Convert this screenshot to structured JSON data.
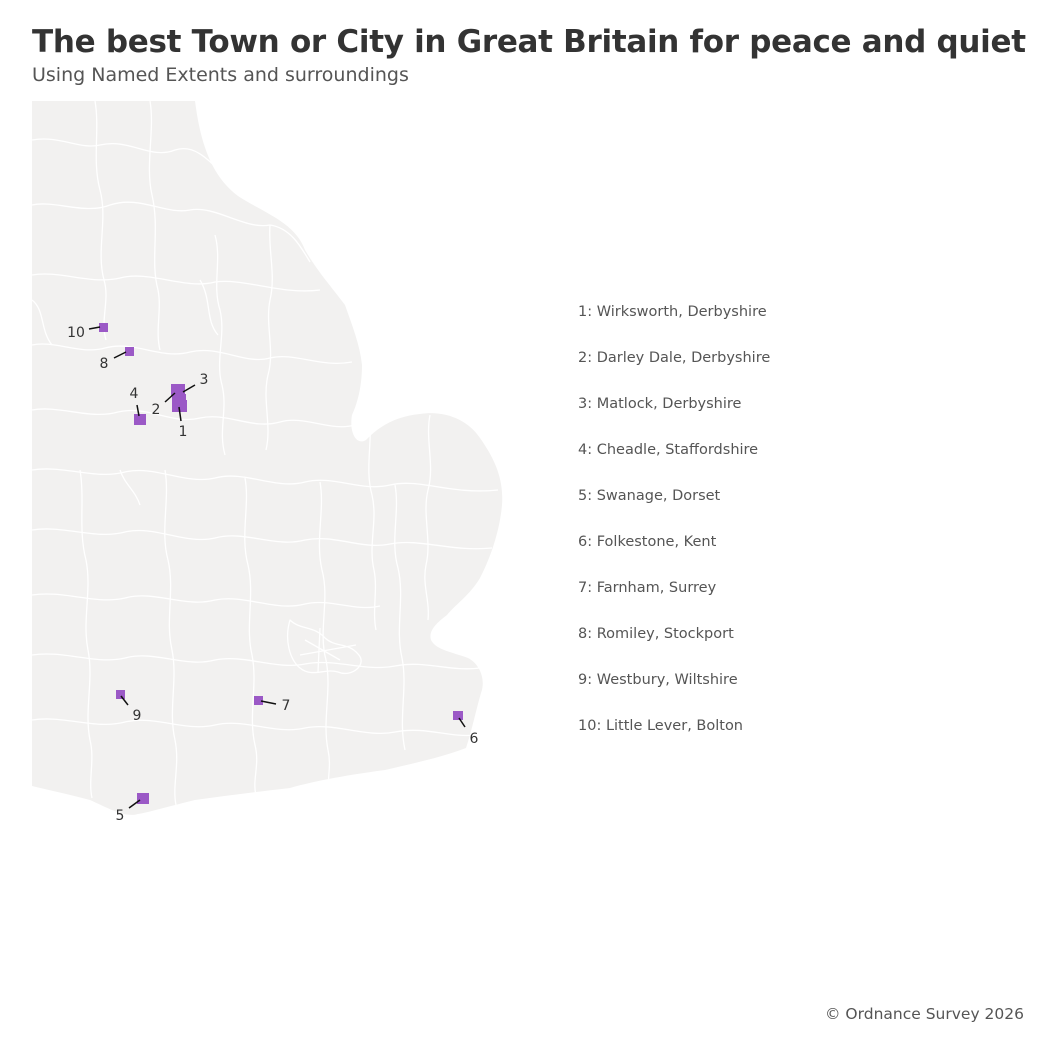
{
  "title": "The best Town or City in Great Britain for peace and quiet",
  "subtitle": "Using Named Extents and surroundings",
  "credit": "© Ordnance Survey 2026",
  "colors": {
    "land": "#f2f1f0",
    "boundaries": "#ffffff",
    "marker": "#9b59c6",
    "leader_line": "#111111"
  },
  "map": {
    "region_shown": "England (Midlands, East and South)",
    "markers": [
      {
        "rank": "1",
        "name": "Wirksworth, Derbyshire"
      },
      {
        "rank": "2",
        "name": "Darley Dale, Derbyshire"
      },
      {
        "rank": "3",
        "name": "Matlock, Derbyshire"
      },
      {
        "rank": "4",
        "name": "Cheadle, Staffordshire"
      },
      {
        "rank": "5",
        "name": "Swanage, Dorset"
      },
      {
        "rank": "6",
        "name": "Folkestone, Kent"
      },
      {
        "rank": "7",
        "name": "Farnham, Surrey"
      },
      {
        "rank": "8",
        "name": "Romiley, Stockport"
      },
      {
        "rank": "9",
        "name": "Westbury, Wiltshire"
      },
      {
        "rank": "10",
        "name": "Little Lever, Bolton"
      }
    ]
  },
  "legend": [
    "1: Wirksworth, Derbyshire",
    "2: Darley Dale, Derbyshire",
    "3: Matlock, Derbyshire",
    "4: Cheadle, Staffordshire",
    "5: Swanage, Dorset",
    "6: Folkestone, Kent",
    "7: Farnham, Surrey",
    "8: Romiley, Stockport",
    "9: Westbury, Wiltshire",
    "10: Little Lever, Bolton"
  ]
}
